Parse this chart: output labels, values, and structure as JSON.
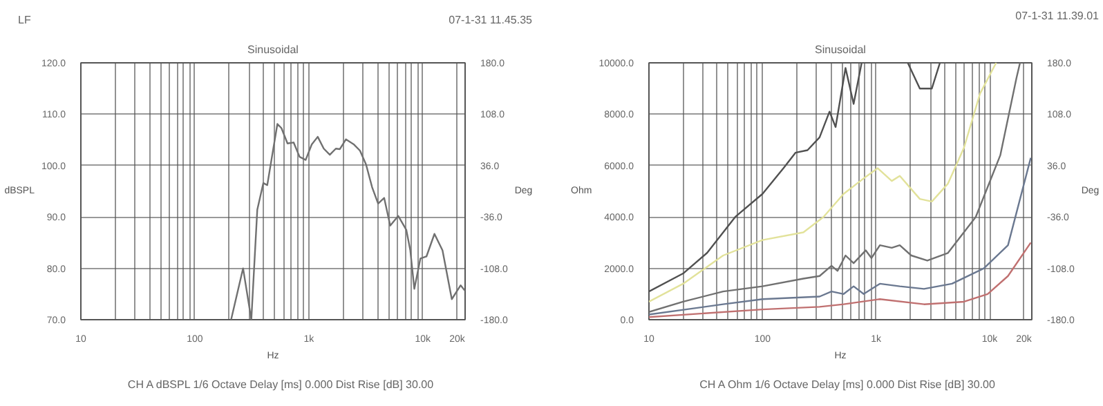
{
  "chart_data": [
    {
      "type": "line",
      "title": "Sinusoidal",
      "annotations": [
        "LF",
        "07-1-31 11.45.35",
        "CH A  dBSPL   1/6 Octave   Delay [ms] 0.000   Dist Rise [dB] 30.00"
      ],
      "xlabel": "Hz",
      "ylabel": "dBSPL",
      "y2label": "Deg",
      "log": "x",
      "grid": true,
      "marker": "none",
      "line_style": "solid",
      "xlim": [
        10,
        23500
      ],
      "ylim": [
        70,
        120
      ],
      "y2lim": [
        -180,
        180
      ],
      "xticks": [
        10,
        {
          "value": 20,
          "label": null
        },
        {
          "value": 30,
          "label": null
        },
        {
          "value": 40,
          "label": null
        },
        {
          "value": 50,
          "label": null
        },
        {
          "value": 60,
          "label": null
        },
        {
          "value": 70,
          "label": null
        },
        {
          "value": 80,
          "label": null
        },
        {
          "value": 90,
          "label": null
        },
        100,
        {
          "value": 200,
          "label": null
        },
        {
          "value": 300,
          "label": null
        },
        {
          "value": 400,
          "label": null
        },
        {
          "value": 500,
          "label": null
        },
        {
          "value": 600,
          "label": null
        },
        {
          "value": 700,
          "label": null
        },
        {
          "value": 800,
          "label": null
        },
        {
          "value": 900,
          "label": null
        },
        {
          "value": 1000,
          "label": "1k"
        },
        {
          "value": 2000,
          "label": null
        },
        {
          "value": 3000,
          "label": null
        },
        {
          "value": 4000,
          "label": null
        },
        {
          "value": 5000,
          "label": null
        },
        {
          "value": 6000,
          "label": null
        },
        {
          "value": 7000,
          "label": null
        },
        {
          "value": 8000,
          "label": null
        },
        {
          "value": 9000,
          "label": null
        },
        {
          "value": 10000,
          "label": "10k"
        },
        {
          "value": 20000,
          "label": "20k"
        }
      ],
      "yticks": [
        {
          "value": 70,
          "label": "70.0"
        },
        {
          "value": 80,
          "label": "80.0"
        },
        {
          "value": 90,
          "label": "90.0"
        },
        {
          "value": 100,
          "label": "100.0"
        },
        {
          "value": 110,
          "label": "110.0"
        },
        {
          "value": 120,
          "label": "120.0"
        }
      ],
      "y2ticks": [
        {
          "value": -180,
          "label": "-180.0"
        },
        {
          "value": -108,
          "label": "-108.0"
        },
        {
          "value": -36,
          "label": "-36.0"
        },
        {
          "value": 36,
          "label": "36.0"
        },
        {
          "value": 108,
          "label": "108.0"
        },
        {
          "value": 180,
          "label": "180.0"
        }
      ],
      "series": [
        {
          "color": "#707070",
          "x": [
            208,
            265,
            313,
            353,
            399,
            432,
            469,
            530,
            575,
            650,
            735,
            830,
            938,
            1060,
            1197,
            1352,
            1528,
            1726,
            1872,
            2115,
            2489,
            2812,
            3177,
            3589,
            4055,
            4582,
            5176,
            6084,
            7161,
            7766,
            8427,
            9523,
            10760,
            12650,
            14880,
            17960,
            21480,
            23500
          ],
          "values": [
            70,
            80,
            70,
            91.4,
            96.6,
            96.2,
            101,
            108.1,
            107.3,
            104.3,
            104.5,
            101.7,
            101.1,
            104.1,
            105.6,
            103.3,
            102.1,
            103.3,
            103.2,
            105.1,
            104.1,
            102.9,
            100.2,
            95.8,
            92.6,
            93.7,
            88.3,
            90.2,
            87.5,
            83.5,
            76,
            81.9,
            82.3,
            86.7,
            83.5,
            74,
            76.7,
            75.6
          ]
        }
      ]
    },
    {
      "type": "line",
      "title": "Sinusoidal",
      "annotations": [
        "07-1-31 11.39.01",
        "CH A  Ohm   1/6 Octave   Delay [ms] 0.000   Dist Rise [dB] 30.00"
      ],
      "xlabel": "Hz",
      "ylabel": "Ohm",
      "y2label": "Deg",
      "log": "x",
      "grid": true,
      "marker": "none",
      "line_style": "solid",
      "xlim": [
        10,
        23500
      ],
      "ylim": [
        0,
        10000
      ],
      "y2lim": [
        -180,
        180
      ],
      "xticks": [
        10,
        {
          "value": 20,
          "label": null
        },
        {
          "value": 30,
          "label": null
        },
        {
          "value": 40,
          "label": null
        },
        {
          "value": 50,
          "label": null
        },
        {
          "value": 60,
          "label": null
        },
        {
          "value": 70,
          "label": null
        },
        {
          "value": 80,
          "label": null
        },
        {
          "value": 90,
          "label": null
        },
        100,
        {
          "value": 200,
          "label": null
        },
        {
          "value": 300,
          "label": null
        },
        {
          "value": 400,
          "label": null
        },
        {
          "value": 500,
          "label": null
        },
        {
          "value": 600,
          "label": null
        },
        {
          "value": 700,
          "label": null
        },
        {
          "value": 800,
          "label": null
        },
        {
          "value": 900,
          "label": null
        },
        {
          "value": 1000,
          "label": "1k"
        },
        {
          "value": 2000,
          "label": null
        },
        {
          "value": 3000,
          "label": null
        },
        {
          "value": 4000,
          "label": null
        },
        {
          "value": 5000,
          "label": null
        },
        {
          "value": 6000,
          "label": null
        },
        {
          "value": 7000,
          "label": null
        },
        {
          "value": 8000,
          "label": null
        },
        {
          "value": 9000,
          "label": null
        },
        {
          "value": 10000,
          "label": "10k"
        },
        {
          "value": 20000,
          "label": "20k"
        }
      ],
      "yticks": [
        {
          "value": 0,
          "label": "0.0"
        },
        {
          "value": 2000,
          "label": "2000.0"
        },
        {
          "value": 4000,
          "label": "4000.0"
        },
        {
          "value": 6000,
          "label": "6000.0"
        },
        {
          "value": 8000,
          "label": "8000.0"
        },
        {
          "value": 10000,
          "label": "10000.0"
        }
      ],
      "y2ticks": [
        {
          "value": -180,
          "label": "-180.0"
        },
        {
          "value": -108,
          "label": "-108.0"
        },
        {
          "value": -36,
          "label": "-36.0"
        },
        {
          "value": 36,
          "label": "36.0"
        },
        {
          "value": 108,
          "label": "108.0"
        },
        {
          "value": 180,
          "label": "180.0"
        }
      ],
      "series": [
        {
          "color": "#505050",
          "x": [
            10,
            20,
            32.5,
            57.5,
            100,
            153,
            195,
            249,
            318,
            389,
            440,
            538,
            634,
            746,
            1100,
            1901,
            2427,
            3097,
            3648
          ],
          "values": [
            1100,
            1800,
            2600,
            4000,
            4900,
            5900,
            6500,
            6600,
            7100,
            8100,
            7500,
            9800,
            8400,
            10000,
            null,
            10000,
            9000,
            9000,
            10000
          ]
        },
        {
          "color": "#e2e29a",
          "x": [
            10,
            20,
            45,
            100,
            229,
            344,
            518,
            777,
            1033,
            1374,
            1616,
            2427,
            3097,
            4295,
            5946,
            8222,
            11400
          ],
          "values": [
            700,
            1400,
            2500,
            3100,
            3400,
            4000,
            4900,
            5500,
            5900,
            5400,
            5600,
            4700,
            4600,
            5300,
            6700,
            8800,
            10000
          ]
        },
        {
          "color": "#707070",
          "x": [
            10,
            20,
            45,
            100,
            229,
            318,
            405,
            458,
            538,
            634,
            810,
            910,
            1080,
            1374,
            1616,
            2040,
            2825,
            4295,
            7540,
            12400,
            17200,
            18500
          ],
          "values": [
            300,
            700,
            1100,
            1300,
            1600,
            1700,
            2100,
            1900,
            2500,
            2200,
            2700,
            2400,
            2900,
            2800,
            2900,
            2500,
            2300,
            2600,
            4000,
            6400,
            9400,
            10000
          ]
        },
        {
          "color": "#6a7890",
          "x": [
            10,
            45,
            100,
            318,
            405,
            518,
            634,
            777,
            1080,
            1616,
            2641,
            4656,
            8888,
            14500,
            23000
          ],
          "values": [
            200,
            600,
            800,
            900,
            1100,
            1000,
            1300,
            1000,
            1400,
            1300,
            1200,
            1400,
            2000,
            2900,
            6300
          ]
        },
        {
          "color": "#c07070",
          "x": [
            10,
            100,
            318,
            518,
            1080,
            2641,
            5946,
            9600,
            14500,
            23000
          ],
          "values": [
            100,
            400,
            500,
            600,
            800,
            600,
            700,
            1000,
            1700,
            3000
          ]
        }
      ]
    }
  ]
}
